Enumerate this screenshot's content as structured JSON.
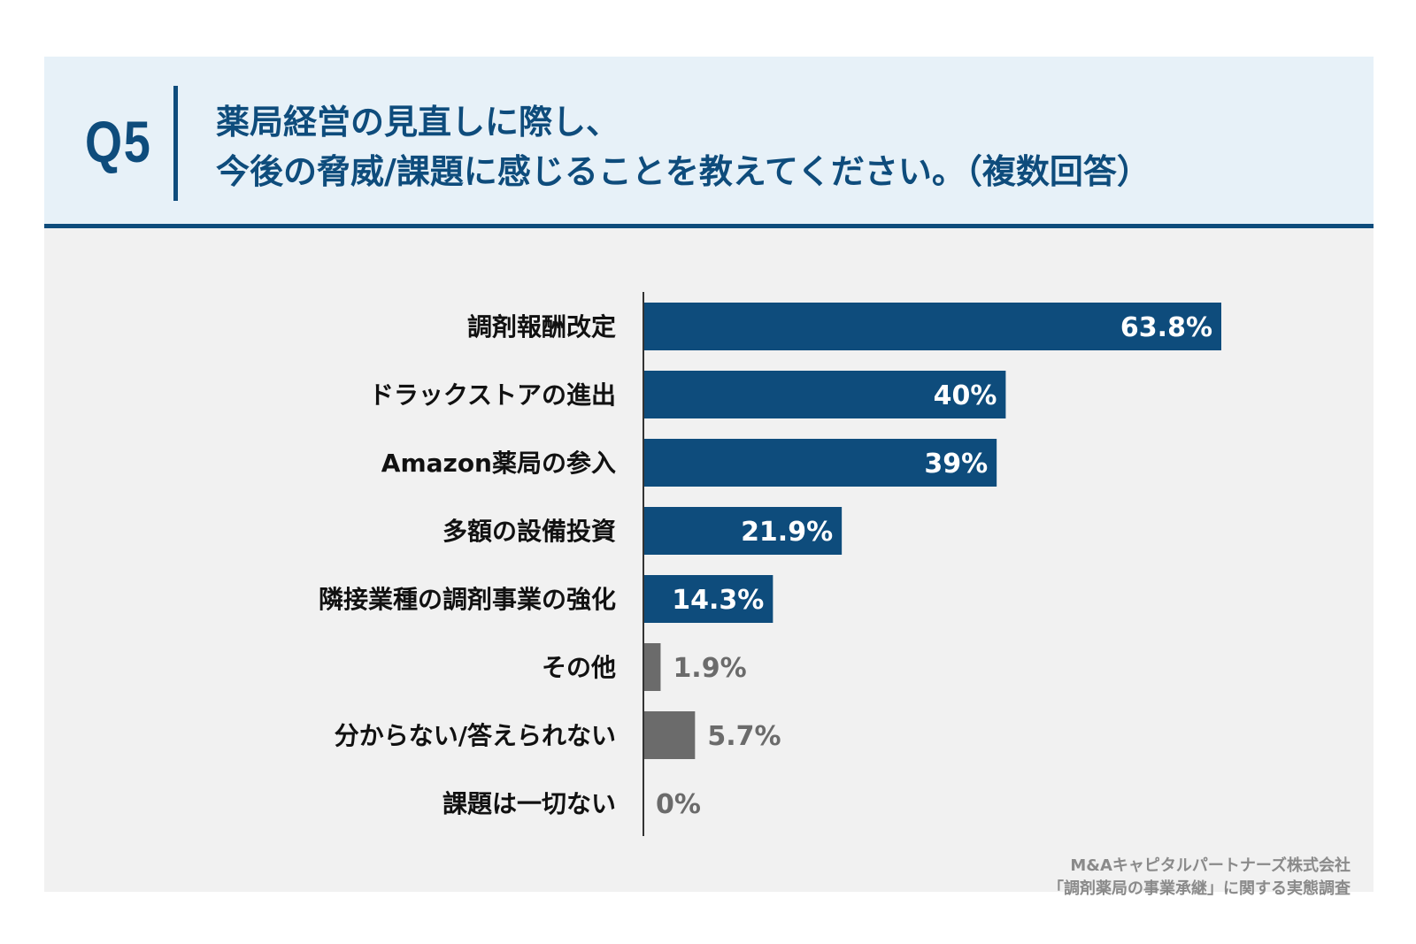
{
  "header": {
    "q_label": "Q5",
    "question_line1": "薬局経営の見直しに際し、",
    "question_line2": "今後の脅威/課題に感じることを教えてください。（複数回答）"
  },
  "colors": {
    "primary": "#0e4c7c",
    "secondary": "#6b6b6b",
    "header_bg": "#e7f1f8",
    "chart_bg": "#f1f1f1"
  },
  "chart_data": {
    "type": "bar",
    "orientation": "horizontal",
    "title": "薬局経営の見直しに際し、今後の脅威/課題に感じることを教えてください。（複数回答）",
    "xlabel": "",
    "ylabel": "",
    "xlim": [
      0,
      63.8
    ],
    "grid": false,
    "categories": [
      "調剤報酬改定",
      "ドラックストアの進出",
      "Amazon薬局の参入",
      "多額の設備投資",
      "隣接業種の調剤事業の強化",
      "その他",
      "分からない/答えられない",
      "課題は一切ない"
    ],
    "values": [
      63.8,
      40,
      39,
      21.9,
      14.3,
      1.9,
      5.7,
      0
    ],
    "value_labels": [
      "63.8%",
      "40%",
      "39%",
      "21.9%",
      "14.3%",
      "1.9%",
      "5.7%",
      "0%"
    ],
    "bar_colors": [
      "#0e4c7c",
      "#0e4c7c",
      "#0e4c7c",
      "#0e4c7c",
      "#0e4c7c",
      "#6b6b6b",
      "#6b6b6b",
      "#6b6b6b"
    ]
  },
  "source": {
    "line1": "M&Aキャピタルパートナーズ株式会社",
    "line2": "「調剤薬局の事業承継」に関する実態調査"
  }
}
